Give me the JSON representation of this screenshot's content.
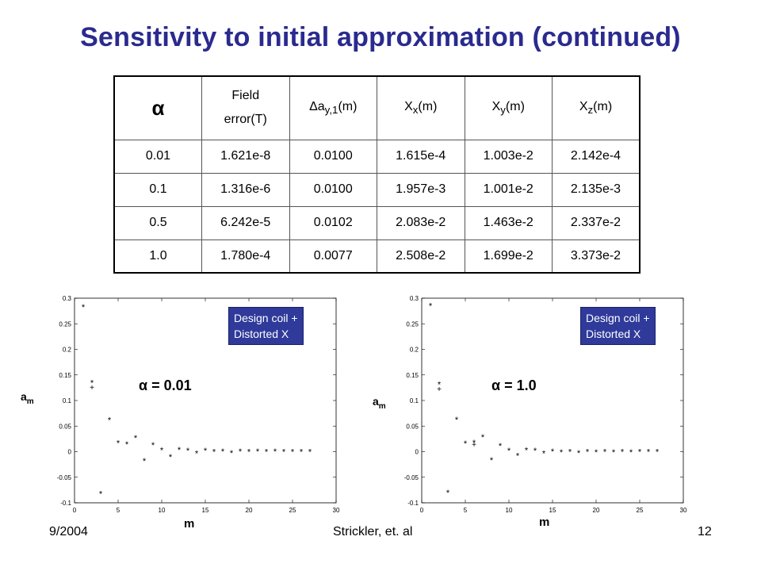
{
  "slide": {
    "title": "Sensitivity to initial approximation (continued)",
    "footer_left": "9/2004",
    "footer_center": "Strickler, et. al",
    "footer_right": "12"
  },
  "table": {
    "headers": [
      {
        "main": "α",
        "sub": ""
      },
      {
        "main": "Field error(T)",
        "sub": ""
      },
      {
        "main": "Δa",
        "sub": "y,1",
        "suffix": "(m)"
      },
      {
        "main": "X",
        "sub": "x",
        "suffix": "(m)"
      },
      {
        "main": "X",
        "sub": "y",
        "suffix": "(m)"
      },
      {
        "main": "X",
        "sub": "z",
        "suffix": "(m)"
      }
    ],
    "rows": [
      [
        "0.01",
        "1.621e-8",
        "0.0100",
        "1.615e-4",
        "1.003e-2",
        "2.142e-4"
      ],
      [
        "0.1",
        "1.316e-6",
        "0.0100",
        "1.957e-3",
        "1.001e-2",
        "2.135e-3"
      ],
      [
        "0.5",
        "6.242e-5",
        "0.0102",
        "2.083e-2",
        "1.463e-2",
        "2.337e-2"
      ],
      [
        "1.0",
        "1.780e-4",
        "0.0077",
        "2.508e-2",
        "1.699e-2",
        "3.373e-2"
      ]
    ]
  },
  "chart_data": [
    {
      "type": "scatter",
      "title": "",
      "annotation": "α = 0.01",
      "legend_text": [
        "Design coil +",
        "Distorted X"
      ],
      "legend_color": "#2f3a9a",
      "xlabel": "m",
      "ylabel": "a",
      "ylabel_sub": "m",
      "xlim": [
        0,
        30
      ],
      "ylim": [
        -0.1,
        0.3
      ],
      "xticks": [
        0,
        5,
        10,
        15,
        20,
        25,
        30
      ],
      "yticks": [
        -0.1,
        -0.05,
        0,
        0.05,
        0.1,
        0.15,
        0.2,
        0.25,
        0.3
      ],
      "series": [
        {
          "marker": "*",
          "x": [
            1,
            2,
            3,
            4,
            5,
            6,
            7,
            8,
            9,
            10,
            11,
            12,
            13,
            14,
            15,
            16,
            17,
            18,
            19,
            20,
            21,
            22,
            23,
            24,
            25,
            26,
            27
          ],
          "y": [
            0.283,
            0.135,
            -0.082,
            0.062,
            0.017,
            0.015,
            0.027,
            -0.018,
            0.013,
            0.003,
            -0.01,
            0.004,
            0.002,
            -0.003,
            0.002,
            0.0,
            0.001,
            -0.002,
            0.001,
            0.0,
            0.001,
            0.0,
            0.001,
            0.0,
            0.0,
            0.0,
            0.0
          ]
        },
        {
          "marker": "+",
          "x": [
            2
          ],
          "y": [
            0.125
          ]
        }
      ]
    },
    {
      "type": "scatter",
      "title": "",
      "annotation": "α = 1.0",
      "legend_text": [
        "Design coil +",
        "Distorted X"
      ],
      "legend_color": "#2f3a9a",
      "xlabel": "m",
      "ylabel": "a",
      "ylabel_sub": "m",
      "xlim": [
        0,
        30
      ],
      "ylim": [
        -0.1,
        0.3
      ],
      "xticks": [
        0,
        5,
        10,
        15,
        20,
        25,
        30
      ],
      "yticks": [
        -0.1,
        -0.05,
        0,
        0.05,
        0.1,
        0.15,
        0.2,
        0.25,
        0.3
      ],
      "series": [
        {
          "marker": "*",
          "x": [
            1,
            2,
            3,
            4,
            5,
            6,
            7,
            8,
            9,
            10,
            11,
            12,
            13,
            14,
            15,
            16,
            17,
            18,
            19,
            20,
            21,
            22,
            23,
            24,
            25,
            26,
            27
          ],
          "y": [
            0.285,
            0.132,
            -0.08,
            0.063,
            0.016,
            0.018,
            0.029,
            -0.016,
            0.012,
            0.002,
            -0.008,
            0.003,
            0.002,
            -0.003,
            0.001,
            -0.001,
            0.0,
            -0.002,
            0.0,
            -0.001,
            0.0,
            -0.001,
            0.0,
            -0.001,
            0.0,
            0.0,
            0.0
          ]
        },
        {
          "marker": "+",
          "x": [
            2,
            6
          ],
          "y": [
            0.122,
            0.013
          ]
        }
      ]
    }
  ]
}
